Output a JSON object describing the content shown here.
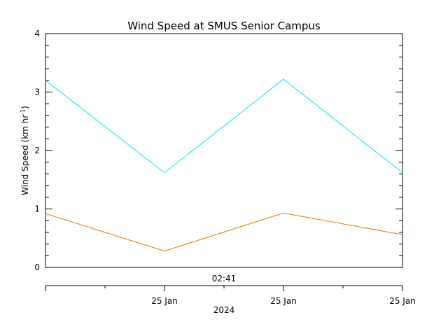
{
  "chart_data": {
    "type": "line",
    "title": "Wind Speed at SMUS Senior Campus",
    "ylabel": "Wind Speed (km hr",
    "ylabel_sup": "-1",
    "ylabel_close": ")",
    "ylim": [
      0,
      4
    ],
    "yticks": [
      "0",
      "1",
      "2",
      "3",
      "4"
    ],
    "x": [
      0,
      1,
      2,
      3
    ],
    "xlim": [
      0,
      3
    ],
    "x_time_label": "02:41",
    "x_day_labels": [
      "25 Jan",
      "25 Jan",
      "25 Jan"
    ],
    "xlabel": "2024",
    "grid": false,
    "series": [
      {
        "color": "#00e5ee",
        "values": [
          3.2,
          1.62,
          3.22,
          1.62
        ]
      },
      {
        "color": "#ee7600",
        "values": [
          0.92,
          0.28,
          0.93,
          0.56
        ]
      }
    ]
  }
}
